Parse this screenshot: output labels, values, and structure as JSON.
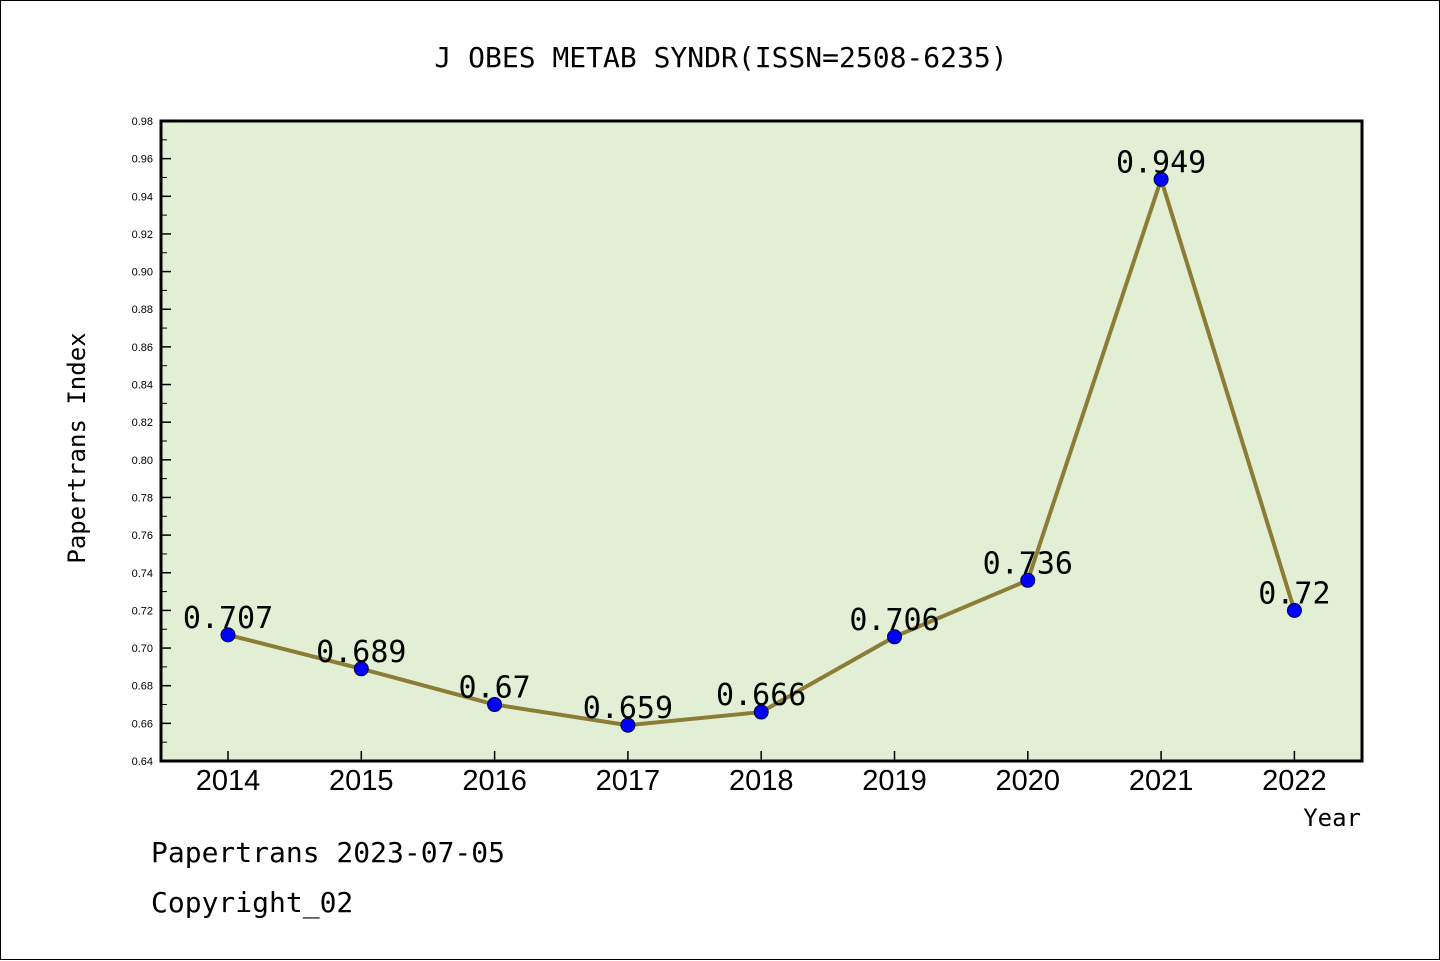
{
  "chart_data": {
    "type": "line",
    "title": "J OBES METAB SYNDR(ISSN=2508-6235)",
    "xlabel": "Year",
    "ylabel": "Papertrans Index",
    "categories": [
      "2014",
      "2015",
      "2016",
      "2017",
      "2018",
      "2019",
      "2020",
      "2021",
      "2022"
    ],
    "values": [
      0.707,
      0.689,
      0.67,
      0.659,
      0.666,
      0.706,
      0.736,
      0.949,
      0.72
    ],
    "data_labels": [
      "0.707",
      "0.689",
      "0.67",
      "0.659",
      "0.666",
      "0.706",
      "0.736",
      "0.949",
      "0.72"
    ],
    "ylim": [
      0.64,
      0.98
    ],
    "yticks": [
      "0.64",
      "0.66",
      "0.68",
      "0.70",
      "0.72",
      "0.74",
      "0.76",
      "0.78",
      "0.80",
      "0.82",
      "0.84",
      "0.86",
      "0.88",
      "0.90",
      "0.92",
      "0.94",
      "0.96",
      "0.98"
    ],
    "grid": false,
    "legend": "none"
  },
  "colors": {
    "plot_background": "#e2efd5",
    "line": "#8b7d35",
    "marker": "#0000ff",
    "axis": "#000000"
  },
  "footer": {
    "line1": "Papertrans 2023-07-05",
    "line2": "Copyright_02"
  }
}
